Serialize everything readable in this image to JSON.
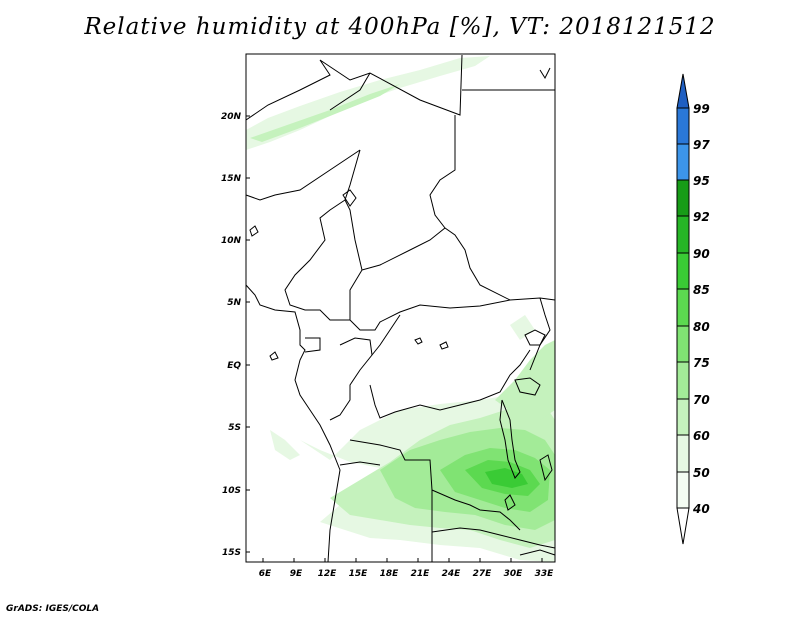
{
  "title": "Relative humidity at 400hPa [%], VT: 2018121512",
  "credit": "GrADS: IGES/COLA",
  "axes": {
    "lon_labels": [
      "6E",
      "9E",
      "12E",
      "15E",
      "18E",
      "21E",
      "24E",
      "27E",
      "30E",
      "33E"
    ],
    "lat_labels": [
      "20N",
      "15N",
      "10N",
      "5N",
      "EQ",
      "5S",
      "10S",
      "15S"
    ]
  },
  "colorbar": {
    "levels": [
      "40",
      "50",
      "60",
      "70",
      "75",
      "80",
      "85",
      "90",
      "92",
      "95",
      "97",
      "99"
    ],
    "colors": [
      "#ffffff",
      "#e6f8e3",
      "#c5f2bd",
      "#a3eb98",
      "#80e373",
      "#5cd950",
      "#3acb35",
      "#26b626",
      "#179c17",
      "#3c95ea",
      "#2a78d8",
      "#1f5fc2"
    ],
    "fill_note_color": "#3acb35"
  },
  "chart_data": {
    "type": "heatmap",
    "title": "Relative humidity at 400hPa [%], VT: 2018121512",
    "variable": "Relative humidity at 400hPa",
    "units": "%",
    "valid_time": "2018121512",
    "xlim": [
      3.5,
      33.5
    ],
    "ylim": [
      -16,
      25
    ],
    "x_ticks": [
      6,
      9,
      12,
      15,
      18,
      21,
      24,
      27,
      30,
      33
    ],
    "y_ticks": [
      20,
      15,
      10,
      5,
      0,
      -5,
      -10,
      -15
    ],
    "contour_levels": [
      40,
      50,
      60,
      70,
      75,
      80,
      85,
      90,
      92,
      95,
      97,
      99
    ]
  }
}
